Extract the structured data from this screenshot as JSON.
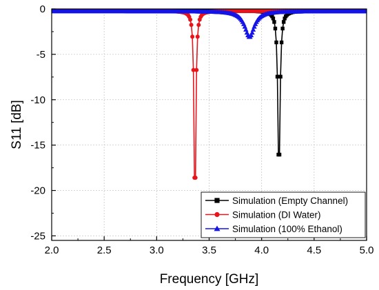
{
  "chart_data": {
    "type": "line",
    "title": "",
    "xlabel": "Frequency [GHz]",
    "ylabel": "S11 [dB]",
    "xlim": [
      2.0,
      5.0
    ],
    "ylim": [
      -25.5,
      0
    ],
    "xticks": [
      2.0,
      2.5,
      3.0,
      3.5,
      4.0,
      4.5,
      5.0
    ],
    "xtick_labels": [
      "2.0",
      "2.5",
      "3.0",
      "3.5",
      "4.0",
      "4.5",
      "5.0"
    ],
    "yticks": [
      0,
      -5,
      -10,
      -15,
      -20,
      -25
    ],
    "ytick_labels": [
      "0",
      "-5",
      "-10",
      "-15",
      "-20",
      "-25"
    ],
    "grid": true,
    "legend_position": "bottom-right",
    "series": [
      {
        "name": "Simulation (Empty Channel)",
        "color": "#000000",
        "marker": "square",
        "f0": 4.165,
        "depth": 18.6,
        "q": 0.012,
        "baseline": -0.2,
        "x_start": 2.0,
        "x_end": 5.0,
        "step": 0.01
      },
      {
        "name": "Simulation (DI Water)",
        "color": "#e8141c",
        "marker": "circle",
        "f0": 3.365,
        "depth": 23.8,
        "q": 0.0092,
        "baseline": -0.22,
        "x_start": 2.0,
        "x_end": 5.0,
        "step": 0.01
      },
      {
        "name": "Simulation (100% Ethanol)",
        "color": "#1414e6",
        "marker": "triangle",
        "f0": 3.885,
        "depth": 2.85,
        "q": 0.055,
        "baseline": -0.25,
        "x_start": 2.0,
        "x_end": 5.0,
        "step": 0.01
      }
    ]
  }
}
